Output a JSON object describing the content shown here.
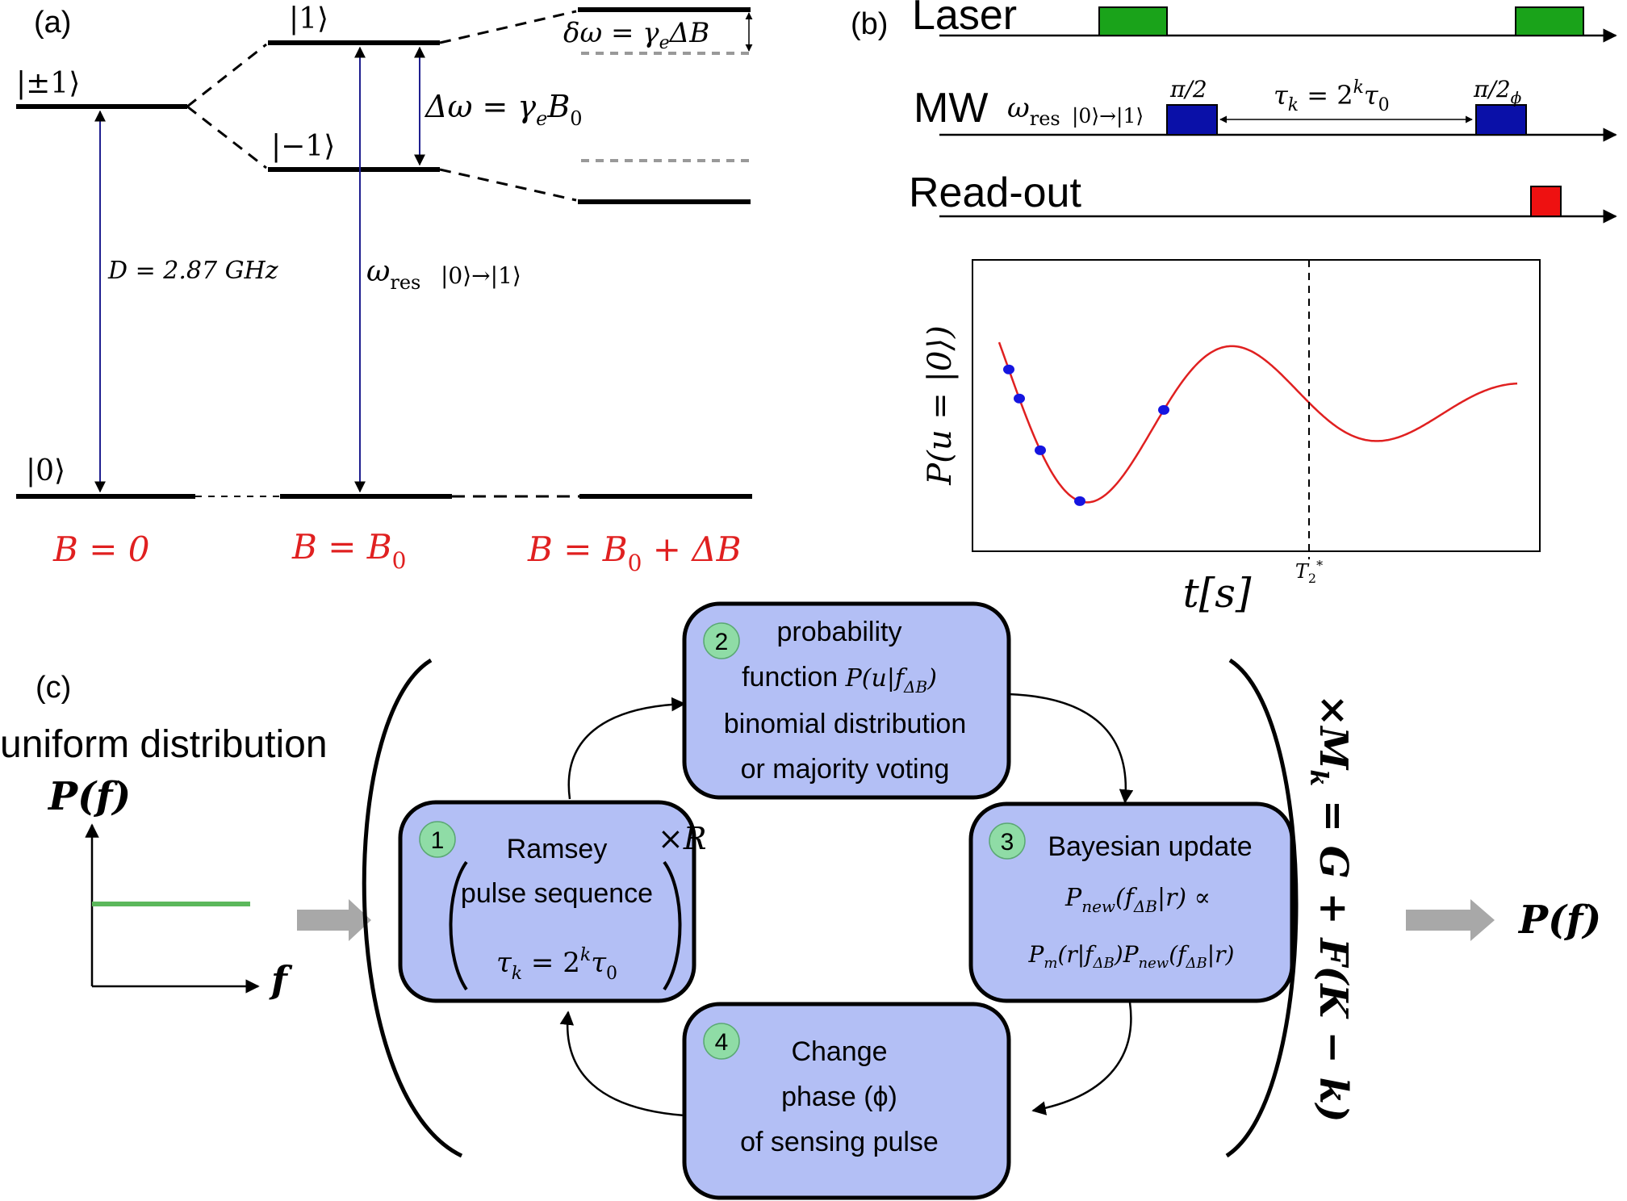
{
  "panel_labels": {
    "a": "(a)",
    "b": "(b)",
    "c": "(c)"
  },
  "colors": {
    "accent_red": "#e02020",
    "laser_green": "#1aa31a",
    "mw_blue": "#0a10a8",
    "readout_red": "#ee1111",
    "box_fill": "#b3bff5",
    "number_circle": "#8fdca6",
    "uniform_line": "#5cb85c",
    "arrow_grey": "#a8a8a8",
    "transition_line": "#1f1f8f"
  },
  "panel_a": {
    "levels": {
      "pm1": "|±1⟩",
      "plus1": "|1⟩",
      "minus1": "|−1⟩",
      "zero": "|0⟩"
    },
    "zfs_label": "D = 2.87 GHz",
    "res_omega": "ω",
    "res_sub": "res",
    "res_transition": "|0⟩→|1⟩",
    "splitting_label": "Δω = γ",
    "splitting_sub": "e",
    "splitting_tail": "B",
    "splitting_tail_sub": "0",
    "shift_label": "δω = γ",
    "shift_sub": "e",
    "shift_tail": "ΔB",
    "field_labels": {
      "b0": "B = 0",
      "b1_main": "B = B",
      "b1_sub": "0",
      "b2_main": "B = B",
      "b2_sub": "0",
      "b2_tail": " + ΔB"
    }
  },
  "panel_b": {
    "rows": {
      "laser": "Laser",
      "mw": "MW",
      "readout": "Read-out"
    },
    "mw_omega": "ω",
    "mw_sub": "res",
    "mw_transition": "|0⟩→|1⟩",
    "pulse1": "π/2",
    "pulse2": "π/2",
    "pulse2_sub": "ϕ",
    "tau_label": "τ",
    "tau_sub": "k",
    "tau_eq": " = 2",
    "tau_sup": "k",
    "tau_tail": "τ",
    "tau_tail_sub": "0",
    "plot_ylabel": "P(u = |0⟩)",
    "plot_xlabel": "t[s]",
    "t2_label": "T",
    "t2_sub": "2",
    "t2_sup": "*"
  },
  "panel_c": {
    "uniform_title": "uniform distribution",
    "prior_label": "P(f)",
    "prior_axis": "f",
    "box1": {
      "num": "1",
      "line1": "Ramsey",
      "line2": "pulse sequence",
      "tau": "τ",
      "tau_sub": "k",
      "eq": " = 2",
      "sup": "k",
      "tail": "τ",
      "tail_sub": "0",
      "repeat": "×R"
    },
    "box2": {
      "num": "2",
      "line1": "probability",
      "line2a": "function ",
      "line2b": "P(u|f",
      "line2_sub": "ΔB",
      "line2c": ")",
      "line3": "binomial distribution",
      "line4": "or majority voting"
    },
    "box3": {
      "num": "3",
      "line1": "Bayesian update",
      "line2a": "P",
      "line2_sub1": "new",
      "line2b": "(f",
      "line2_sub2": "ΔB",
      "line2c": "|r) ∝",
      "line3a": "P",
      "line3_sub1": "m",
      "line3b": "(r|f",
      "line3_sub2": "ΔB",
      "line3c": ")P",
      "line3_sub3": "new",
      "line3d": "(f",
      "line3_sub4": "ΔB",
      "line3e": "|r)"
    },
    "box4": {
      "num": "4",
      "line1": "Change",
      "line2": "phase (ϕ)",
      "line3": "of sensing pulse"
    },
    "repeat_main": "×M",
    "repeat_sub": "k",
    "repeat_tail": " = G + F(K − k)",
    "posterior_label": "P(f)"
  },
  "chart_data": {
    "type": "line",
    "title": "",
    "xlabel": "t[s]",
    "ylabel": "P(u = |0⟩)",
    "x_tick_labels": [
      "T2*"
    ],
    "grid": false,
    "series": [
      {
        "values": "damped oscillation",
        "style": "red curve"
      },
      {
        "values": "measured points",
        "style": "blue markers"
      }
    ],
    "annotations": [
      "vertical dashed line at T2*"
    ]
  }
}
